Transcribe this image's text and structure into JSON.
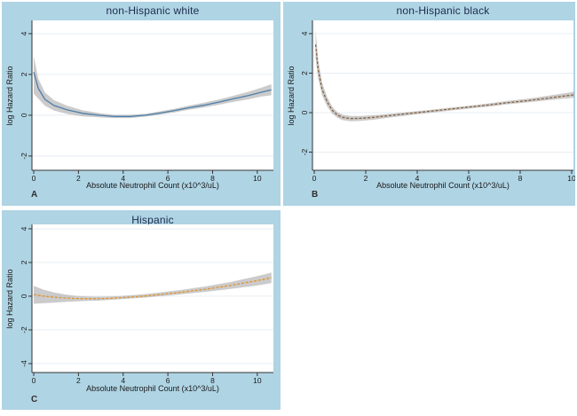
{
  "figure": {
    "background": "#ffffff",
    "panel_bg": "#afd4e4",
    "plot_bg": "#ffffff",
    "band_color": "#a0a0a0",
    "band_opacity": 0.55,
    "axis_color": "#333333",
    "grid_color": "#e7eef3",
    "title_color": "#1c2c4e",
    "text_color": "#1a1a1a"
  },
  "chart_data": [
    {
      "id": "A",
      "type": "line",
      "title": "non-Hispanic white",
      "panel_label": "A",
      "xlabel": "Absolute Neutrophil Count (x10^3/uL)",
      "ylabel": "log Hazard Ratio",
      "legend": "none",
      "grid": "horizontal",
      "xticks": [
        0,
        2,
        4,
        6,
        8,
        10
      ],
      "yticks": [
        4,
        2,
        0,
        -2
      ],
      "xlim": [
        -0.08,
        10.72
      ],
      "ylim": [
        -2.7,
        4.65
      ],
      "line_color": "#4d7eab",
      "line_dash": "",
      "series": {
        "name": "log hazard ratio with 95% CI band",
        "x": [
          0.0,
          0.2,
          0.5,
          0.9,
          1.5,
          2.2,
          3.0,
          3.6,
          4.3,
          5.0,
          5.6,
          6.3,
          6.9,
          7.6,
          8.3,
          8.9,
          9.6,
          10.2,
          10.63
        ],
        "y": [
          2.12,
          1.32,
          0.78,
          0.48,
          0.26,
          0.09,
          -0.01,
          -0.06,
          -0.06,
          0.0,
          0.1,
          0.23,
          0.36,
          0.49,
          0.65,
          0.8,
          0.96,
          1.13,
          1.25
        ],
        "hi": [
          2.9,
          1.8,
          1.12,
          0.74,
          0.46,
          0.24,
          0.09,
          0.02,
          0.02,
          0.07,
          0.18,
          0.32,
          0.46,
          0.61,
          0.78,
          0.95,
          1.15,
          1.36,
          1.52
        ],
        "lo": [
          1.05,
          0.82,
          0.46,
          0.23,
          0.06,
          -0.06,
          -0.11,
          -0.14,
          -0.14,
          -0.07,
          0.02,
          0.14,
          0.26,
          0.38,
          0.52,
          0.65,
          0.78,
          0.92,
          0.98
        ]
      }
    },
    {
      "id": "B",
      "type": "line",
      "title": "non-Hispanic black",
      "panel_label": "B",
      "xlabel": "Absolute Neutrophil Count (x10^3/uL)",
      "ylabel": "log Hazard Ratio",
      "legend": "none",
      "grid": "horizontal",
      "xticks": [
        0,
        2,
        4,
        6,
        8,
        10
      ],
      "yticks": [
        4,
        2,
        0,
        -2
      ],
      "xlim": [
        -0.07,
        10.07
      ],
      "ylim": [
        -2.92,
        4.67
      ],
      "line_color": "#8a6340",
      "line_dash": "3 1.8",
      "series": {
        "name": "log hazard ratio with 95% CI band",
        "x": [
          0.05,
          0.15,
          0.3,
          0.5,
          0.7,
          0.9,
          1.1,
          1.4,
          1.8,
          2.3,
          3.0,
          3.7,
          4.5,
          5.2,
          6.0,
          6.8,
          7.5,
          8.3,
          9.0,
          9.7,
          10.1
        ],
        "y": [
          3.45,
          2.2,
          1.2,
          0.55,
          0.12,
          -0.12,
          -0.24,
          -0.3,
          -0.29,
          -0.24,
          -0.14,
          -0.04,
          0.07,
          0.17,
          0.28,
          0.39,
          0.5,
          0.61,
          0.72,
          0.84,
          0.9
        ],
        "hi": [
          4.2,
          2.7,
          1.55,
          0.8,
          0.3,
          0.02,
          -0.1,
          -0.17,
          -0.17,
          -0.13,
          -0.05,
          0.04,
          0.14,
          0.24,
          0.35,
          0.47,
          0.59,
          0.71,
          0.84,
          0.98,
          1.06
        ],
        "lo": [
          2.75,
          1.75,
          0.9,
          0.32,
          -0.06,
          -0.26,
          -0.38,
          -0.44,
          -0.42,
          -0.36,
          -0.24,
          -0.13,
          -0.01,
          0.09,
          0.2,
          0.31,
          0.42,
          0.52,
          0.62,
          0.71,
          0.76
        ]
      }
    },
    {
      "id": "C",
      "type": "line",
      "title": "Hispanic",
      "panel_label": "C",
      "xlabel": "Absolute Neutrophil Count (x10^3/uL)",
      "ylabel": "log Hazard Ratio",
      "legend": "none",
      "grid": "horizontal",
      "xticks": [
        0,
        2,
        4,
        6,
        8,
        10
      ],
      "yticks": [
        4,
        2,
        0,
        -2,
        -4
      ],
      "xlim": [
        -0.08,
        10.72
      ],
      "ylim": [
        -4.53,
        4.26
      ],
      "line_color": "#e2932f",
      "line_dash": "3 1.8",
      "series": {
        "name": "log hazard ratio with 95% CI band",
        "x": [
          0.0,
          0.4,
          0.9,
          1.4,
          1.9,
          2.4,
          2.9,
          3.4,
          3.9,
          4.4,
          5.0,
          5.5,
          6.0,
          6.6,
          7.1,
          7.7,
          8.2,
          8.8,
          9.3,
          9.9,
          10.4,
          10.63
        ],
        "y": [
          0.1,
          0.01,
          -0.06,
          -0.11,
          -0.14,
          -0.15,
          -0.15,
          -0.13,
          -0.09,
          -0.05,
          0.01,
          0.08,
          0.15,
          0.23,
          0.32,
          0.42,
          0.52,
          0.64,
          0.76,
          0.9,
          1.03,
          1.1
        ],
        "hi": [
          0.62,
          0.4,
          0.23,
          0.1,
          0.02,
          -0.02,
          -0.03,
          -0.02,
          0.01,
          0.06,
          0.13,
          0.2,
          0.28,
          0.37,
          0.47,
          0.58,
          0.7,
          0.84,
          0.99,
          1.16,
          1.32,
          1.4
        ],
        "lo": [
          -0.45,
          -0.42,
          -0.38,
          -0.34,
          -0.31,
          -0.28,
          -0.26,
          -0.22,
          -0.18,
          -0.13,
          -0.08,
          -0.02,
          0.04,
          0.11,
          0.18,
          0.26,
          0.34,
          0.43,
          0.52,
          0.62,
          0.72,
          0.78
        ]
      }
    }
  ]
}
